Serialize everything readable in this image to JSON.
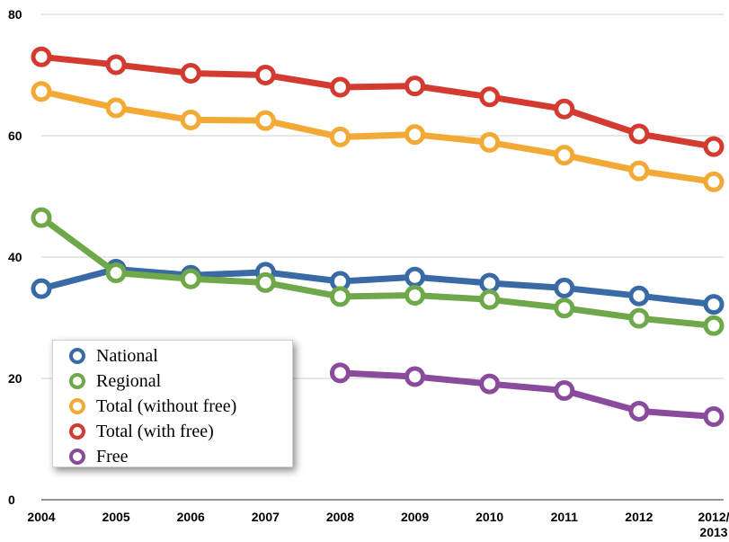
{
  "chart_data": {
    "type": "line",
    "title": "",
    "xlabel": "",
    "ylabel": "",
    "ylim": [
      0,
      80
    ],
    "yticks": [
      "0",
      "20",
      "40",
      "60",
      "80"
    ],
    "categories": [
      "2004",
      "2005",
      "2006",
      "2007",
      "2008",
      "2009",
      "2010",
      "2011",
      "2012",
      "2012/ 2013"
    ],
    "grid": "horizontal",
    "legend_position": "bottom-left",
    "series": [
      {
        "name": "National",
        "color": "#3a6aa6",
        "values": [
          34.8,
          38.0,
          37.0,
          37.5,
          36.0,
          36.7,
          35.7,
          34.9,
          33.6,
          32.2
        ]
      },
      {
        "name": "Regional",
        "color": "#6fa84a",
        "values": [
          46.5,
          37.4,
          36.4,
          35.8,
          33.5,
          33.7,
          33.0,
          31.6,
          29.9,
          28.7
        ]
      },
      {
        "name": "Total (without free)",
        "color": "#f2a935",
        "values": [
          67.3,
          64.6,
          62.6,
          62.5,
          59.8,
          60.2,
          58.9,
          56.8,
          54.2,
          52.4
        ]
      },
      {
        "name": "Total (with free)",
        "color": "#d43b30",
        "values": [
          73.0,
          71.7,
          70.3,
          70.0,
          68.0,
          68.2,
          66.4,
          64.4,
          60.3,
          58.2
        ]
      },
      {
        "name": "Free",
        "color": "#8a4b9c",
        "values": [
          null,
          null,
          null,
          null,
          20.9,
          20.3,
          19.1,
          18.0,
          14.6,
          13.7
        ]
      }
    ]
  }
}
